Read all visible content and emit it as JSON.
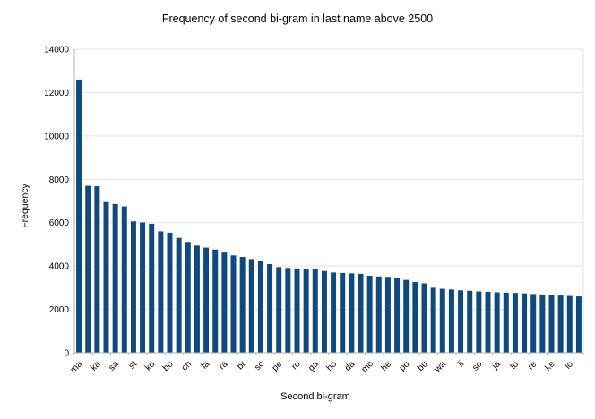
{
  "title": "Frequency of second bi-gram in last name above 2500",
  "chart_data": {
    "type": "bar",
    "title": "Frequency of second bi-gram in last name above 2500",
    "xlabel": "Second bi-gram",
    "ylabel": "Frequency",
    "ylim": [
      0,
      14000
    ],
    "yticks": [
      0,
      2000,
      4000,
      6000,
      8000,
      10000,
      12000,
      14000
    ],
    "grid": "horizontal",
    "legend": "none",
    "bar_color": "#10497e",
    "gridline_color": "#e2e2e2",
    "axis_color": "#b3b3b3",
    "label_skip_note": "category labels shown on every 2nd bar",
    "bars": [
      {
        "label": "ma",
        "value": 12600
      },
      {
        "label": "",
        "value": 7700
      },
      {
        "label": "ka",
        "value": 7680
      },
      {
        "label": "",
        "value": 6950
      },
      {
        "label": "sa",
        "value": 6860
      },
      {
        "label": "",
        "value": 6750
      },
      {
        "label": "st",
        "value": 6060
      },
      {
        "label": "",
        "value": 6010
      },
      {
        "label": "ko",
        "value": 5950
      },
      {
        "label": "",
        "value": 5600
      },
      {
        "label": "bo",
        "value": 5540
      },
      {
        "label": "",
        "value": 5300
      },
      {
        "label": "ch",
        "value": 5110
      },
      {
        "label": "",
        "value": 4940
      },
      {
        "label": "la",
        "value": 4850
      },
      {
        "label": "",
        "value": 4760
      },
      {
        "label": "ra",
        "value": 4620
      },
      {
        "label": "",
        "value": 4490
      },
      {
        "label": "br",
        "value": 4420
      },
      {
        "label": "",
        "value": 4320
      },
      {
        "label": "sc",
        "value": 4220
      },
      {
        "label": "",
        "value": 4090
      },
      {
        "label": "pe",
        "value": 3950
      },
      {
        "label": "",
        "value": 3910
      },
      {
        "label": "ro",
        "value": 3890
      },
      {
        "label": "",
        "value": 3870
      },
      {
        "label": "ga",
        "value": 3850
      },
      {
        "label": "",
        "value": 3770
      },
      {
        "label": "ho",
        "value": 3700
      },
      {
        "label": "",
        "value": 3680
      },
      {
        "label": "da",
        "value": 3660
      },
      {
        "label": "",
        "value": 3640
      },
      {
        "label": "mc",
        "value": 3550
      },
      {
        "label": "",
        "value": 3520
      },
      {
        "label": "he",
        "value": 3500
      },
      {
        "label": "",
        "value": 3450
      },
      {
        "label": "po",
        "value": 3360
      },
      {
        "label": "",
        "value": 3260
      },
      {
        "label": "bu",
        "value": 3200
      },
      {
        "label": "",
        "value": 3000
      },
      {
        "label": "wa",
        "value": 2950
      },
      {
        "label": "",
        "value": 2920
      },
      {
        "label": "li",
        "value": 2880
      },
      {
        "label": "",
        "value": 2860
      },
      {
        "label": "so",
        "value": 2830
      },
      {
        "label": "",
        "value": 2810
      },
      {
        "label": "ja",
        "value": 2790
      },
      {
        "label": "",
        "value": 2770
      },
      {
        "label": "to",
        "value": 2760
      },
      {
        "label": "",
        "value": 2740
      },
      {
        "label": "re",
        "value": 2710
      },
      {
        "label": "",
        "value": 2690
      },
      {
        "label": "ke",
        "value": 2660
      },
      {
        "label": "",
        "value": 2640
      },
      {
        "label": "lo",
        "value": 2620
      },
      {
        "label": "",
        "value": 2600
      }
    ]
  }
}
